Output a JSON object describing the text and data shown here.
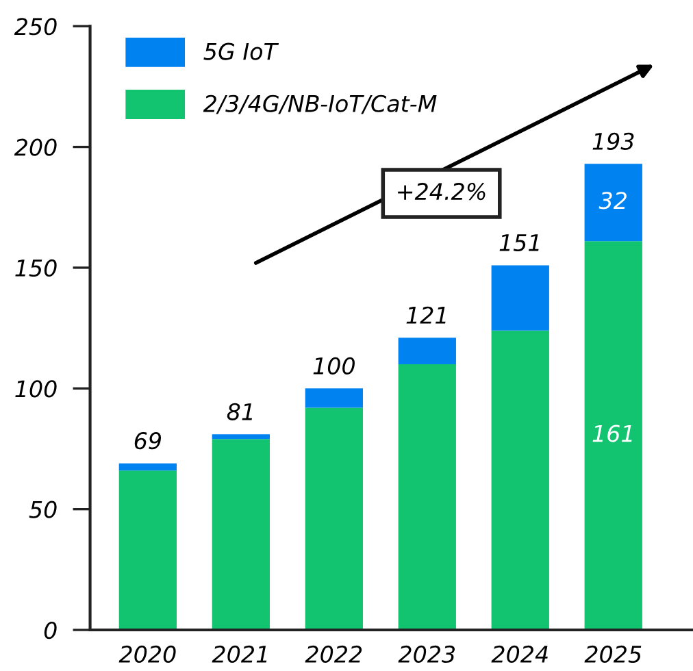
{
  "chart_data": {
    "type": "bar",
    "stacked": true,
    "categories": [
      "2020",
      "2021",
      "2022",
      "2023",
      "2024",
      "2025"
    ],
    "series": [
      {
        "name": "2/3/4G/NB-IoT/Cat-M",
        "color": "#12c370",
        "values": [
          66,
          79,
          92,
          110,
          124,
          161
        ],
        "value_labels": [
          null,
          null,
          null,
          null,
          null,
          "161"
        ]
      },
      {
        "name": "5G IoT",
        "color": "#0082f0",
        "values": [
          3,
          2,
          8,
          11,
          27,
          32
        ],
        "value_labels": [
          null,
          null,
          null,
          null,
          null,
          "32"
        ]
      }
    ],
    "totals": [
      "69",
      "81",
      "100",
      "121",
      "151",
      "193"
    ],
    "ylim": [
      0,
      250
    ],
    "yticks": [
      0,
      50,
      100,
      150,
      200,
      250
    ],
    "legend": "top left",
    "grid": false,
    "annotations": [
      "+24.2%"
    ]
  }
}
